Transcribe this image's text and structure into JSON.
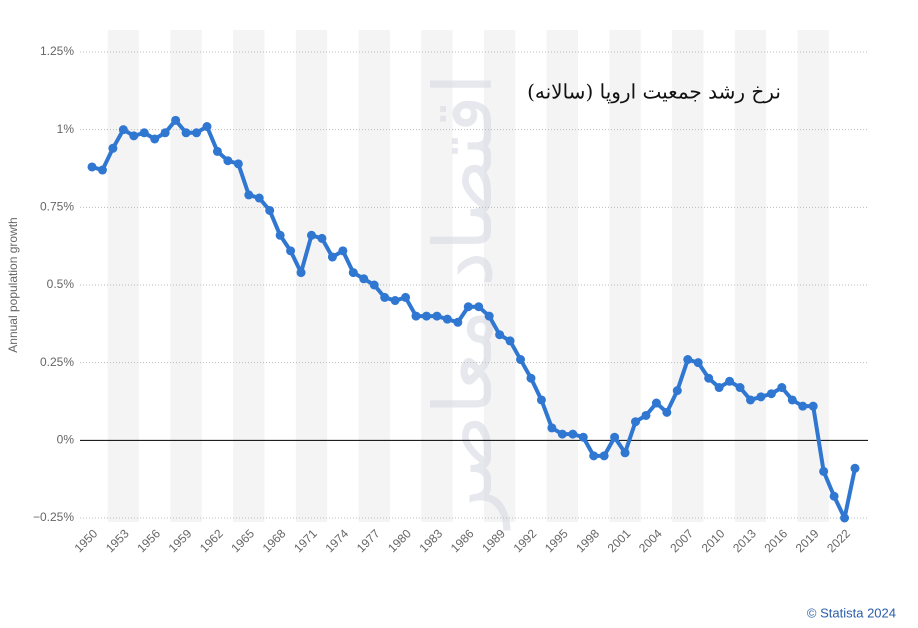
{
  "chart_data": {
    "type": "line",
    "title": "نرخ رشد جمعیت اروپا (سالانه)",
    "watermark": "اقتصاد معاصر",
    "credit": "© Statista 2024",
    "y_label": "Annual population growth",
    "x": [
      1950,
      1951,
      1952,
      1953,
      1954,
      1955,
      1956,
      1957,
      1958,
      1959,
      1960,
      1961,
      1962,
      1963,
      1964,
      1965,
      1966,
      1967,
      1968,
      1969,
      1970,
      1971,
      1972,
      1973,
      1974,
      1975,
      1976,
      1977,
      1978,
      1979,
      1980,
      1981,
      1982,
      1983,
      1984,
      1985,
      1986,
      1987,
      1988,
      1989,
      1990,
      1991,
      1992,
      1993,
      1994,
      1995,
      1996,
      1997,
      1998,
      1999,
      2000,
      2001,
      2002,
      2003,
      2004,
      2005,
      2006,
      2007,
      2008,
      2009,
      2010,
      2011,
      2012,
      2013,
      2014,
      2015,
      2016,
      2017,
      2018,
      2019,
      2020,
      2021,
      2022,
      2023
    ],
    "series": [
      {
        "name": "Annual population growth",
        "color": "#2f77d1",
        "values": [
          0.88,
          0.87,
          0.94,
          1.0,
          0.98,
          0.99,
          0.97,
          0.99,
          1.03,
          0.99,
          0.99,
          1.01,
          0.93,
          0.9,
          0.89,
          0.79,
          0.78,
          0.74,
          0.66,
          0.61,
          0.54,
          0.66,
          0.65,
          0.59,
          0.61,
          0.54,
          0.52,
          0.5,
          0.46,
          0.45,
          0.46,
          0.4,
          0.4,
          0.4,
          0.39,
          0.38,
          0.43,
          0.43,
          0.4,
          0.34,
          0.32,
          0.26,
          0.2,
          0.13,
          0.04,
          0.02,
          0.02,
          0.01,
          -0.05,
          -0.05,
          0.01,
          -0.04,
          0.06,
          0.08,
          0.12,
          0.09,
          0.16,
          0.26,
          0.25,
          0.2,
          0.17,
          0.19,
          0.17,
          0.13,
          0.14,
          0.15,
          0.17,
          0.13,
          0.11,
          0.11,
          -0.1,
          -0.18,
          -0.25,
          -0.09
        ]
      }
    ],
    "xlim": [
      1950,
      2023
    ],
    "xticks": [
      1950,
      1953,
      1956,
      1959,
      1962,
      1965,
      1968,
      1971,
      1974,
      1977,
      1980,
      1983,
      1986,
      1989,
      1992,
      1995,
      1998,
      2001,
      2004,
      2007,
      2010,
      2013,
      2016,
      2019,
      2022
    ],
    "ylim": [
      -0.25,
      1.25
    ],
    "yticks": [
      {
        "value": -0.25,
        "label": "−0.25%"
      },
      {
        "value": 0,
        "label": "0%"
      },
      {
        "value": 0.25,
        "label": "0.25%"
      },
      {
        "value": 0.5,
        "label": "0.5%"
      },
      {
        "value": 0.75,
        "label": "0.75%"
      },
      {
        "value": 1,
        "label": "1%"
      },
      {
        "value": 1.25,
        "label": "1.25%"
      }
    ],
    "grid": true
  }
}
